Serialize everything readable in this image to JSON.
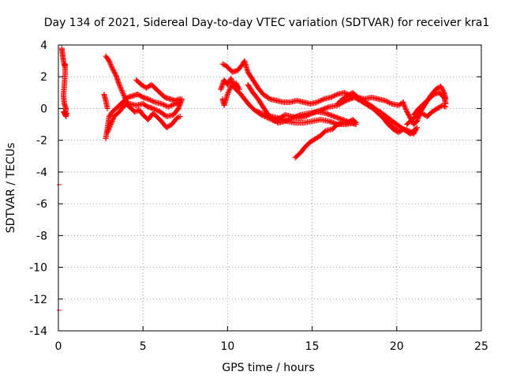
{
  "chart_data": {
    "type": "scatter",
    "title": "Day 134 of 2021, Sidereal Day-to-day VTEC variation (SDTVAR) for receiver kra1",
    "xlabel": "GPS time / hours",
    "ylabel": "SDTVAR / TECUs",
    "xlim": [
      0,
      25
    ],
    "ylim": [
      -14,
      4
    ],
    "xticks": [
      0,
      5,
      10,
      15,
      20,
      25
    ],
    "yticks": [
      -14,
      -12,
      -10,
      -8,
      -6,
      -4,
      -2,
      0,
      2,
      4
    ],
    "grid": true,
    "marker": "+",
    "color": "#ff0000",
    "series": [
      {
        "name": "SDTVAR",
        "segments": [
          [
            [
              0.05,
              -4.8
            ]
          ],
          [
            [
              0.05,
              -12.7
            ]
          ],
          [
            [
              0.2,
              3.8
            ],
            [
              0.25,
              3.4
            ],
            [
              0.3,
              3.0
            ],
            [
              0.35,
              2.7
            ],
            [
              0.4,
              2.8
            ],
            [
              0.4,
              2.2
            ],
            [
              0.35,
              1.5
            ],
            [
              0.3,
              0.8
            ],
            [
              0.35,
              0.3
            ],
            [
              0.45,
              0.0
            ],
            [
              0.4,
              -0.4
            ],
            [
              0.3,
              -0.2
            ],
            [
              0.45,
              -0.5
            ],
            [
              0.5,
              -0.3
            ]
          ],
          [
            [
              2.8,
              3.3
            ],
            [
              3.0,
              3.0
            ],
            [
              3.2,
              2.5
            ],
            [
              3.4,
              2.1
            ],
            [
              3.6,
              1.5
            ],
            [
              3.8,
              1.0
            ],
            [
              4.0,
              0.5
            ],
            [
              4.2,
              0.1
            ],
            [
              4.5,
              -0.2
            ],
            [
              4.8,
              -0.1
            ],
            [
              5.0,
              -0.4
            ],
            [
              5.3,
              -0.7
            ],
            [
              5.6,
              -0.3
            ],
            [
              6.0,
              -0.7
            ],
            [
              6.4,
              -1.2
            ],
            [
              6.7,
              -1.0
            ],
            [
              7.0,
              -0.6
            ],
            [
              7.2,
              -0.5
            ]
          ],
          [
            [
              2.8,
              -1.9
            ],
            [
              2.9,
              -1.2
            ],
            [
              3.0,
              -0.5
            ],
            [
              3.2,
              -0.2
            ],
            [
              3.5,
              0.1
            ],
            [
              3.8,
              0.4
            ],
            [
              4.1,
              0.7
            ],
            [
              4.4,
              0.8
            ],
            [
              4.7,
              0.9
            ],
            [
              5.0,
              0.7
            ],
            [
              5.3,
              0.6
            ],
            [
              5.7,
              0.4
            ],
            [
              6.1,
              0.3
            ],
            [
              6.5,
              0.1
            ],
            [
              6.9,
              0.3
            ],
            [
              7.2,
              0.4
            ]
          ],
          [
            [
              2.9,
              -1.5
            ],
            [
              3.1,
              -1.0
            ],
            [
              3.3,
              -0.5
            ],
            [
              3.6,
              -0.2
            ],
            [
              3.9,
              0.2
            ],
            [
              4.2,
              0.3
            ],
            [
              4.6,
              0.2
            ],
            [
              5.0,
              0.3
            ],
            [
              5.3,
              0.1
            ],
            [
              5.6,
              0.0
            ],
            [
              6.0,
              -0.2
            ],
            [
              6.4,
              -0.5
            ],
            [
              6.8,
              -0.4
            ],
            [
              7.1,
              0.0
            ],
            [
              7.3,
              0.6
            ]
          ],
          [
            [
              4.6,
              1.8
            ],
            [
              4.9,
              1.5
            ],
            [
              5.2,
              1.3
            ],
            [
              5.5,
              1.5
            ],
            [
              5.8,
              1.2
            ],
            [
              6.0,
              1.0
            ],
            [
              6.3,
              0.7
            ],
            [
              6.6,
              0.6
            ],
            [
              6.9,
              0.5
            ],
            [
              7.2,
              0.6
            ]
          ],
          [
            [
              2.7,
              0.9
            ],
            [
              2.8,
              0.5
            ],
            [
              2.9,
              0.0
            ]
          ],
          [
            [
              9.7,
              2.8
            ],
            [
              9.9,
              2.7
            ],
            [
              10.1,
              2.5
            ],
            [
              10.3,
              2.3
            ],
            [
              10.6,
              2.4
            ],
            [
              10.9,
              2.8
            ],
            [
              11.0,
              3.0
            ],
            [
              11.2,
              2.3
            ],
            [
              11.5,
              1.8
            ],
            [
              11.8,
              1.3
            ],
            [
              12.1,
              0.9
            ],
            [
              12.5,
              0.6
            ],
            [
              12.9,
              0.5
            ],
            [
              13.3,
              0.4
            ],
            [
              13.7,
              0.4
            ],
            [
              14.1,
              0.5
            ],
            [
              14.5,
              0.4
            ],
            [
              14.9,
              0.3
            ],
            [
              15.3,
              0.4
            ],
            [
              15.7,
              0.6
            ],
            [
              16.1,
              0.7
            ],
            [
              16.5,
              0.9
            ],
            [
              16.9,
              1.0
            ],
            [
              17.3,
              0.8
            ],
            [
              17.7,
              0.7
            ],
            [
              18.1,
              0.6
            ],
            [
              18.5,
              0.7
            ],
            [
              18.9,
              0.6
            ],
            [
              19.3,
              0.5
            ],
            [
              19.7,
              0.3
            ],
            [
              20.1,
              0.2
            ],
            [
              20.4,
              0.4
            ]
          ],
          [
            [
              9.6,
              1.2
            ],
            [
              9.8,
              1.8
            ],
            [
              10.0,
              1.5
            ],
            [
              10.2,
              1.9
            ],
            [
              10.4,
              1.3
            ],
            [
              10.7,
              1.0
            ],
            [
              11.0,
              0.6
            ],
            [
              11.3,
              0.2
            ],
            [
              11.6,
              -0.1
            ],
            [
              12.0,
              -0.4
            ],
            [
              12.4,
              -0.6
            ],
            [
              12.8,
              -0.8
            ],
            [
              13.1,
              -0.6
            ],
            [
              13.4,
              -0.4
            ],
            [
              13.8,
              -0.5
            ],
            [
              14.2,
              -0.6
            ],
            [
              14.6,
              -0.5
            ],
            [
              15.0,
              -0.3
            ],
            [
              15.5,
              -0.1
            ],
            [
              16.0,
              0.1
            ],
            [
              16.5,
              0.2
            ],
            [
              17.0,
              0.5
            ],
            [
              17.5,
              0.7
            ],
            [
              18.0,
              0.4
            ],
            [
              18.5,
              0.1
            ],
            [
              19.0,
              -0.2
            ],
            [
              19.5,
              -0.6
            ],
            [
              20.0,
              -1.0
            ],
            [
              20.4,
              -1.3
            ],
            [
              20.8,
              -1.6
            ],
            [
              21.1,
              -1.3
            ]
          ],
          [
            [
              9.7,
              0.6
            ],
            [
              9.8,
              0.2
            ],
            [
              10.0,
              0.9
            ],
            [
              10.2,
              1.4
            ],
            [
              10.5,
              1.6
            ],
            [
              10.7,
              1.2
            ]
          ],
          [
            [
              11.2,
              1.5
            ],
            [
              11.5,
              1.0
            ],
            [
              11.8,
              0.6
            ],
            [
              12.1,
              0.1
            ],
            [
              12.4,
              -0.4
            ],
            [
              12.7,
              -0.7
            ],
            [
              13.0,
              -0.9
            ],
            [
              13.4,
              -0.8
            ],
            [
              13.8,
              -0.6
            ],
            [
              14.3,
              -0.4
            ],
            [
              14.8,
              -0.3
            ],
            [
              15.3,
              -0.2
            ],
            [
              15.8,
              -0.3
            ],
            [
              16.3,
              -0.5
            ],
            [
              16.8,
              -0.7
            ],
            [
              17.3,
              -0.9
            ],
            [
              17.6,
              -1.0
            ]
          ],
          [
            [
              14.0,
              -3.1
            ],
            [
              14.3,
              -2.8
            ],
            [
              14.6,
              -2.4
            ],
            [
              14.9,
              -2.1
            ],
            [
              15.2,
              -1.9
            ],
            [
              15.5,
              -1.7
            ],
            [
              15.8,
              -1.4
            ],
            [
              16.2,
              -1.3
            ],
            [
              16.5,
              -1.0
            ],
            [
              16.8,
              -0.9
            ],
            [
              17.1,
              -0.9
            ],
            [
              17.4,
              -0.7
            ],
            [
              17.6,
              -0.9
            ]
          ],
          [
            [
              11.8,
              -0.2
            ],
            [
              12.2,
              -0.4
            ],
            [
              12.6,
              -0.5
            ],
            [
              13.0,
              -0.6
            ],
            [
              13.5,
              -0.8
            ],
            [
              14.0,
              -0.9
            ],
            [
              14.5,
              -0.9
            ],
            [
              15.0,
              -0.8
            ],
            [
              15.5,
              -0.7
            ],
            [
              16.0,
              -0.8
            ],
            [
              16.5,
              -1.0
            ],
            [
              17.0,
              -1.0
            ],
            [
              17.5,
              -0.9
            ]
          ],
          [
            [
              16.5,
              0.3
            ],
            [
              16.8,
              0.6
            ],
            [
              17.1,
              0.8
            ],
            [
              17.4,
              1.0
            ],
            [
              17.7,
              0.7
            ],
            [
              18.0,
              0.5
            ],
            [
              18.3,
              0.3
            ],
            [
              18.6,
              0.1
            ],
            [
              18.9,
              -0.2
            ],
            [
              19.2,
              -0.5
            ],
            [
              19.5,
              -0.8
            ],
            [
              19.8,
              -1.2
            ],
            [
              20.1,
              -1.4
            ]
          ],
          [
            [
              18.0,
              0.4
            ],
            [
              18.3,
              0.2
            ],
            [
              18.6,
              0.0
            ],
            [
              18.9,
              -0.3
            ],
            [
              19.2,
              -0.6
            ],
            [
              19.5,
              -1.0
            ],
            [
              19.8,
              -1.3
            ],
            [
              20.1,
              -1.5
            ],
            [
              20.4,
              -1.3
            ],
            [
              20.7,
              -1.4
            ],
            [
              21.0,
              -1.6
            ],
            [
              21.2,
              -1.2
            ]
          ],
          [
            [
              20.4,
              0.3
            ],
            [
              20.6,
              -0.2
            ],
            [
              20.8,
              -0.6
            ],
            [
              21.0,
              -1.0
            ],
            [
              21.2,
              -0.8
            ],
            [
              21.4,
              -0.2
            ],
            [
              21.7,
              0.3
            ],
            [
              22.0,
              0.8
            ],
            [
              22.3,
              1.2
            ],
            [
              22.6,
              1.4
            ],
            [
              22.8,
              1.0
            ],
            [
              22.9,
              0.6
            ]
          ],
          [
            [
              21.0,
              -0.4
            ],
            [
              21.3,
              0.0
            ],
            [
              21.6,
              0.3
            ],
            [
              21.9,
              0.6
            ],
            [
              22.2,
              0.9
            ],
            [
              22.5,
              1.0
            ],
            [
              22.8,
              0.7
            ],
            [
              22.9,
              0.3
            ]
          ],
          [
            [
              20.6,
              -1.0
            ],
            [
              20.9,
              -0.7
            ],
            [
              21.2,
              -0.4
            ],
            [
              21.5,
              -0.3
            ],
            [
              21.8,
              -0.5
            ],
            [
              22.1,
              -0.2
            ],
            [
              22.4,
              0.0
            ],
            [
              22.7,
              0.2
            ],
            [
              22.9,
              0.1
            ]
          ]
        ]
      }
    ]
  }
}
